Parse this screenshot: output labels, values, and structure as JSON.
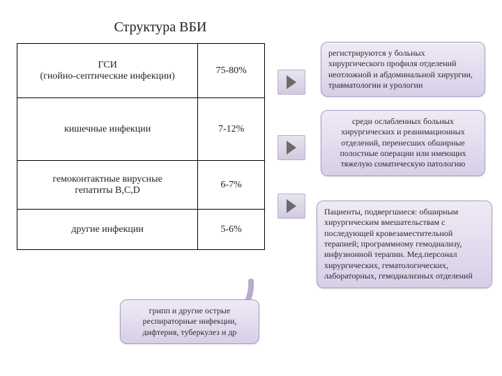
{
  "title": "Структура ВБИ",
  "rows": [
    {
      "name": "ГСИ\n(гнойно-септические инфекции)",
      "pct": "75-80%"
    },
    {
      "name": "кишечные инфекции",
      "pct": "7-12%"
    },
    {
      "name": "гемоконтактные вирусные\nгепатиты B,C,D",
      "pct": "6-7%"
    },
    {
      "name": "другие инфекции",
      "pct": "5-6%"
    }
  ],
  "callouts": {
    "c1": "регистрируются у больных хирургического профиля отделений неотложной и абдоминальной хирургии, травматологии и урологии",
    "c2": "среди ослабленных больных хирургических и реанимационных отделений, перенесших обширные полостные операции или имеющих тяжелую соматическую патологию",
    "c3": "Пациенты, подвергшиеся: обширным хирургическим вмешательствам с последующей кровезаместительной терапией; программному гемодиализу, инфузионной терапии. Мед.персонал хирургических, гематологических, лабораторных, гемодиализных отделений",
    "c4": "грипп и другие острые респираторные инфекции, дифтерия, туберкулез и др"
  },
  "colors": {
    "callout_bg_top": "#efeaf5",
    "callout_bg_bottom": "#d8cfe8",
    "callout_border": "#a99cc7",
    "arrow_fill": "#d2cbe0",
    "arrow_tri": "#6b6b6b",
    "text": "#2a2a2a"
  },
  "layout": {
    "title_fontsize": 20,
    "cell_fontsize": 14,
    "callout_fontsize": 12
  }
}
